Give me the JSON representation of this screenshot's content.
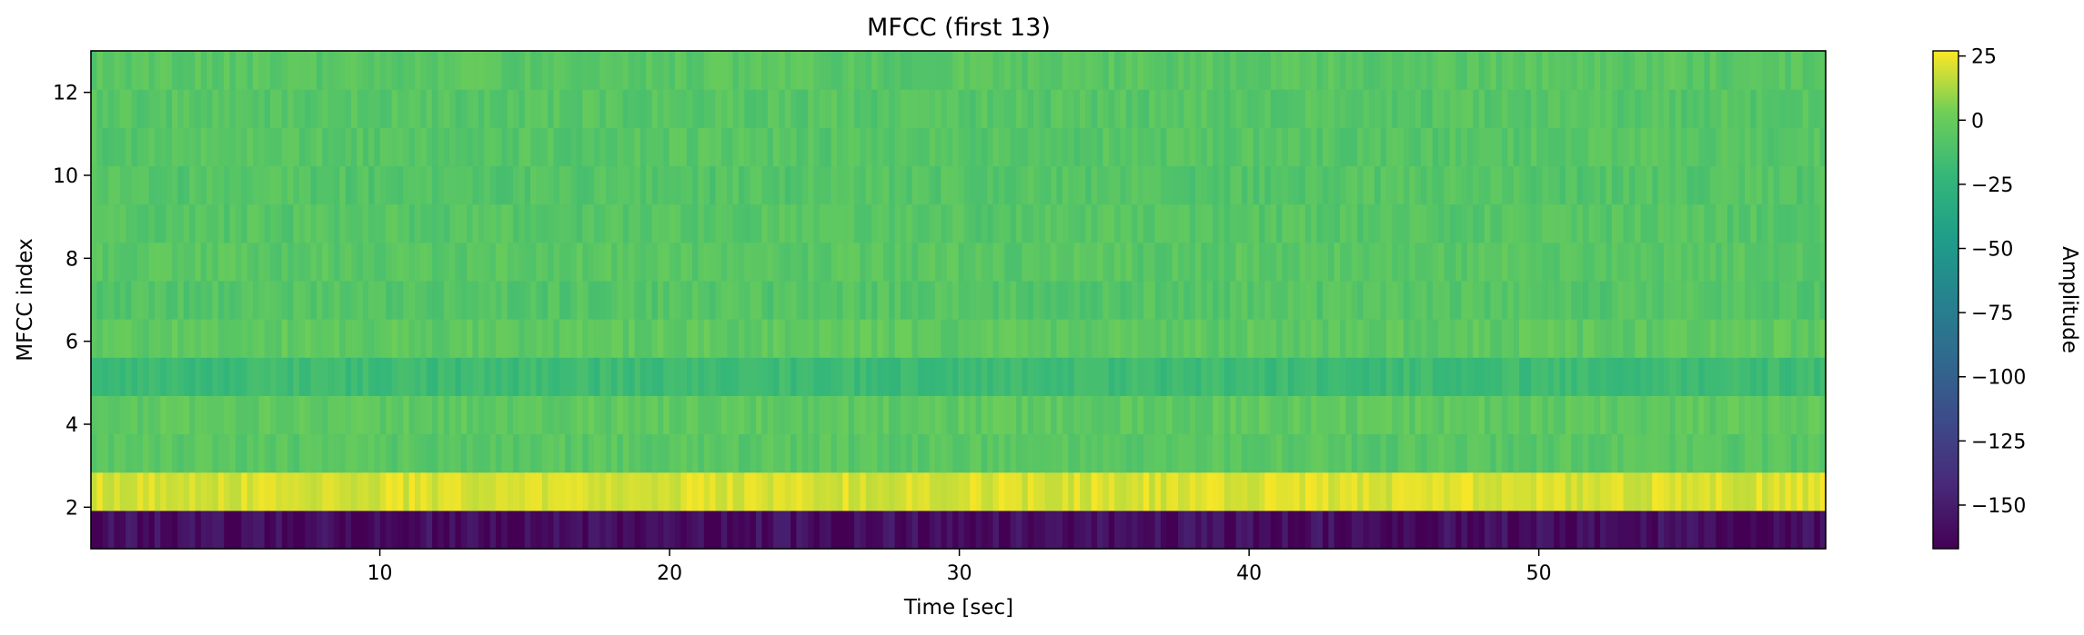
{
  "chart_data": {
    "type": "heatmap",
    "title": "MFCC (first 13)",
    "xlabel": "Time [sec]",
    "ylabel": "MFCC index",
    "xlim": [
      0.03,
      59.9
    ],
    "ylim": [
      1,
      13
    ],
    "x_ticks": [
      10,
      20,
      30,
      40,
      50
    ],
    "y_ticks": [
      2,
      4,
      6,
      8,
      10,
      12
    ],
    "colormap": "viridis",
    "colorbar": {
      "label": "Amplitude",
      "range": [
        -167,
        27
      ],
      "ticks": [
        25,
        0,
        -25,
        -50,
        -75,
        -100,
        -125,
        -150
      ]
    },
    "rows": [
      {
        "mfcc_index": 1,
        "mean_amplitude": -160
      },
      {
        "mfcc_index": 2,
        "mean_amplitude": 21
      },
      {
        "mfcc_index": 3,
        "mean_amplitude": -6
      },
      {
        "mfcc_index": 4,
        "mean_amplitude": -4
      },
      {
        "mfcc_index": 5,
        "mean_amplitude": -18
      },
      {
        "mfcc_index": 6,
        "mean_amplitude": -4
      },
      {
        "mfcc_index": 7,
        "mean_amplitude": -8
      },
      {
        "mfcc_index": 8,
        "mean_amplitude": -6
      },
      {
        "mfcc_index": 9,
        "mean_amplitude": -7
      },
      {
        "mfcc_index": 10,
        "mean_amplitude": -8
      },
      {
        "mfcc_index": 11,
        "mean_amplitude": -7
      },
      {
        "mfcc_index": 12,
        "mean_amplitude": -7
      },
      {
        "mfcc_index": 13,
        "mean_amplitude": -6
      }
    ]
  }
}
